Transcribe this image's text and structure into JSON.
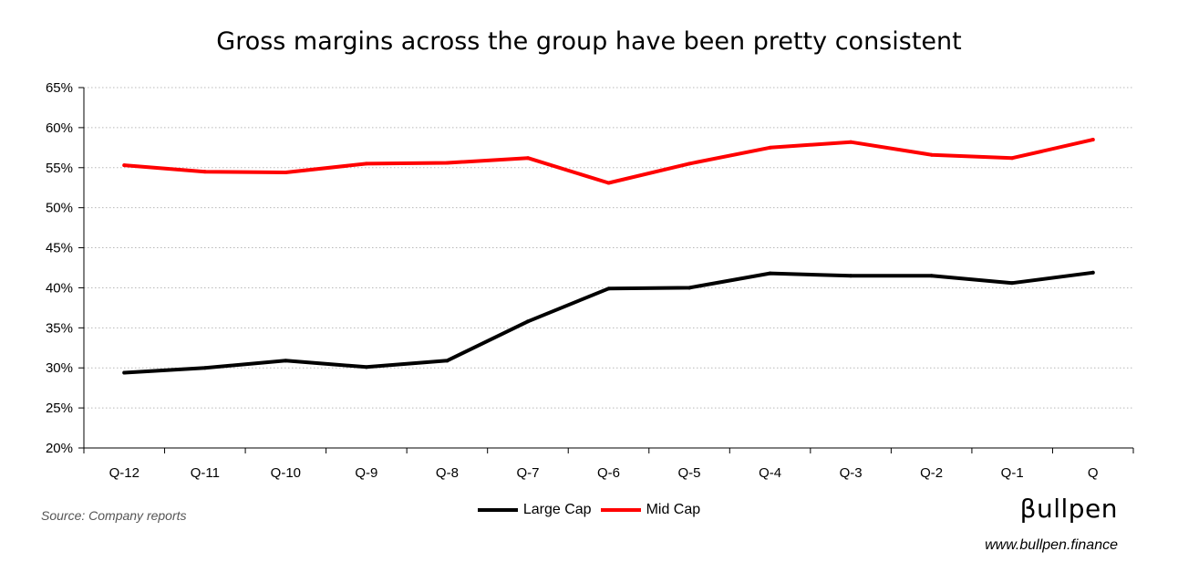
{
  "chart_data": {
    "type": "line",
    "title": "Gross margins across the group have been pretty consistent",
    "xlabel": "",
    "ylabel": "",
    "categories": [
      "Q-12",
      "Q-11",
      "Q-10",
      "Q-9",
      "Q-8",
      "Q-7",
      "Q-6",
      "Q-5",
      "Q-4",
      "Q-3",
      "Q-2",
      "Q-1",
      "Q"
    ],
    "ylim": [
      20,
      65
    ],
    "yticks": [
      20,
      25,
      30,
      35,
      40,
      45,
      50,
      55,
      60,
      65
    ],
    "ytick_format": "%",
    "grid": "horizontal dotted",
    "legend_position": "bottom",
    "series": [
      {
        "name": "Large Cap",
        "color": "#000000",
        "values": [
          29.4,
          30.0,
          30.9,
          30.1,
          30.9,
          35.8,
          39.9,
          40.0,
          41.8,
          41.5,
          41.5,
          40.6,
          41.9
        ]
      },
      {
        "name": "Mid Cap",
        "color": "#ff0000",
        "values": [
          55.3,
          54.5,
          54.4,
          55.5,
          55.6,
          56.2,
          53.1,
          55.5,
          57.5,
          58.2,
          56.6,
          56.2,
          58.5
        ]
      }
    ]
  },
  "source": "Source: Company reports",
  "brand": "βullpen",
  "website": "www.bullpen.finance"
}
